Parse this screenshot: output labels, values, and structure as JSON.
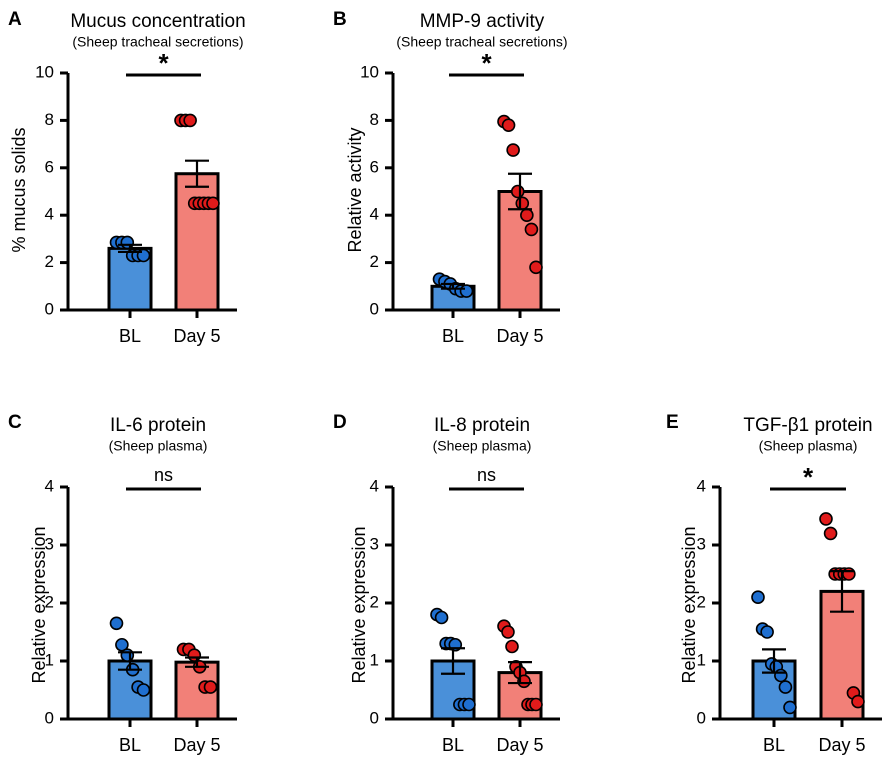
{
  "colors": {
    "bl": "#4a90d9",
    "bl_dot": "#1f6fd0",
    "day5": "#f28078",
    "day5_dot": "#e01b1b",
    "axis": "#000000"
  },
  "chart_data": [
    {
      "id": "A",
      "letter": "A",
      "type": "bar",
      "title": "Mucus concentration",
      "subtitle": "(Sheep tracheal secretions)",
      "ylabel": "% mucus solids",
      "ylim": [
        0,
        10
      ],
      "yticks": [
        0,
        2,
        4,
        6,
        8,
        10
      ],
      "categories": [
        "BL",
        "Day 5"
      ],
      "means": [
        2.6,
        5.75
      ],
      "sem": [
        0.15,
        0.55
      ],
      "points": [
        [
          2.85,
          2.85,
          2.85,
          2.3,
          2.3,
          2.3
        ],
        [
          8.0,
          8.0,
          8.0,
          4.5,
          4.5,
          4.5,
          4.5,
          4.5
        ]
      ],
      "significance": "*"
    },
    {
      "id": "B",
      "letter": "B",
      "type": "bar",
      "title": "MMP-9 activity",
      "subtitle": "(Sheep tracheal secretions)",
      "ylabel": "Relative activity",
      "ylim": [
        0,
        10
      ],
      "yticks": [
        0,
        2,
        4,
        6,
        8,
        10
      ],
      "categories": [
        "BL",
        "Day 5"
      ],
      "means": [
        1.0,
        5.0
      ],
      "sem": [
        0.1,
        0.75
      ],
      "points": [
        [
          1.3,
          1.2,
          1.1,
          0.9,
          0.8,
          0.8
        ],
        [
          7.95,
          7.8,
          6.75,
          5.0,
          4.5,
          4.0,
          3.4,
          1.8
        ]
      ],
      "significance": "*"
    },
    {
      "id": "C",
      "letter": "C",
      "type": "bar",
      "title": "IL-6 protein",
      "subtitle": "(Sheep plasma)",
      "ylabel": "Relative expression",
      "ylim": [
        0,
        4
      ],
      "yticks": [
        0,
        1,
        2,
        3,
        4
      ],
      "categories": [
        "BL",
        "Day 5"
      ],
      "means": [
        1.0,
        0.98
      ],
      "sem": [
        0.15,
        0.08
      ],
      "points": [
        [
          1.65,
          1.28,
          1.1,
          0.85,
          0.55,
          0.5
        ],
        [
          1.2,
          1.2,
          1.1,
          0.9,
          0.55,
          0.55
        ]
      ],
      "significance": "ns"
    },
    {
      "id": "D",
      "letter": "D",
      "type": "bar",
      "title": "IL-8 protein",
      "subtitle": "(Sheep plasma)",
      "ylabel": "Relative expression",
      "ylim": [
        0,
        4
      ],
      "yticks": [
        0,
        1,
        2,
        3,
        4
      ],
      "categories": [
        "BL",
        "Day 5"
      ],
      "means": [
        1.0,
        0.8
      ],
      "sem": [
        0.22,
        0.18
      ],
      "points": [
        [
          1.8,
          1.75,
          1.3,
          1.3,
          1.28,
          0.25,
          0.25,
          0.25
        ],
        [
          1.6,
          1.5,
          1.25,
          0.9,
          0.8,
          0.65,
          0.25,
          0.25,
          0.25
        ]
      ],
      "significance": "ns"
    },
    {
      "id": "E",
      "letter": "E",
      "type": "bar",
      "title": "TGF-β1 protein",
      "subtitle": "(Sheep plasma)",
      "ylabel": "Relative expression",
      "ylim": [
        0,
        4
      ],
      "yticks": [
        0,
        1,
        2,
        3,
        4
      ],
      "categories": [
        "BL",
        "Day 5"
      ],
      "means": [
        1.0,
        2.2
      ],
      "sem": [
        0.2,
        0.35
      ],
      "points": [
        [
          2.1,
          1.55,
          1.5,
          0.95,
          0.9,
          0.75,
          0.55,
          0.2
        ],
        [
          3.45,
          3.2,
          2.5,
          2.5,
          2.5,
          2.5,
          0.45,
          0.3
        ]
      ],
      "significance": "*"
    }
  ]
}
